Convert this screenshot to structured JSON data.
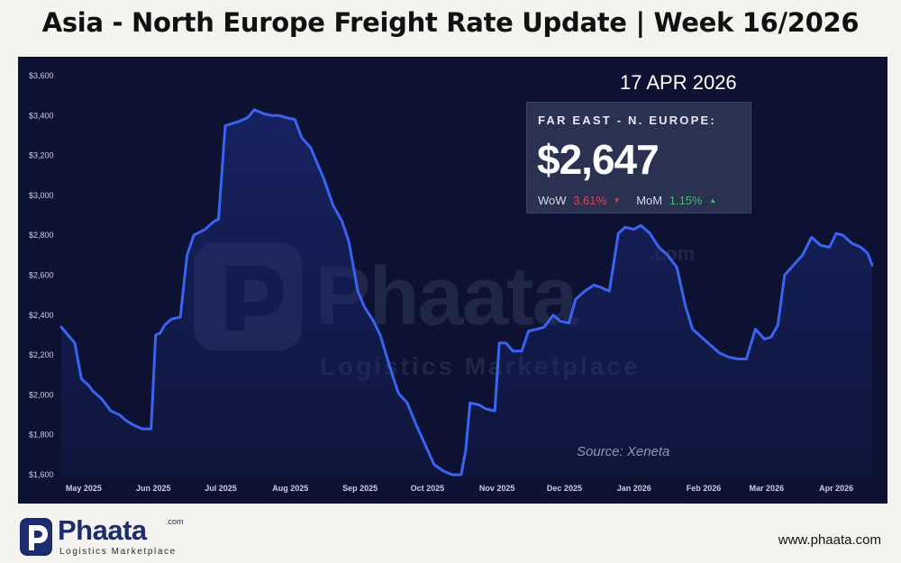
{
  "page": {
    "title": "Asia - North Europe Freight Rate Update | Week 16/2026",
    "website": "www.phaata.com"
  },
  "branding": {
    "logo_name": "Phaata",
    "logo_com": ".com",
    "logo_tagline": "Logistics Marketplace",
    "logo_color": "#1d2c6e"
  },
  "watermark": {
    "name": "Phaata",
    "com": ".com",
    "tagline": "Logistics Marketplace"
  },
  "card": {
    "date": "17 APR 2026",
    "heading": "FAR EAST - N. EUROPE:",
    "value": "$2,647",
    "wow_label": "WoW",
    "wow_value": "3.61%",
    "wow_direction": "down",
    "mom_label": "MoM",
    "mom_value": "1.15%",
    "mom_direction": "up",
    "down_color": "#e0444e",
    "up_color": "#3fbf6a"
  },
  "source": "Source: Xeneta",
  "colors": {
    "background": "#f4f3ef",
    "panel": "#0d1233",
    "line": "#3a63f0",
    "area_fill": "#1a2870"
  },
  "chart_data": {
    "type": "area",
    "ylim": [
      1600,
      3600
    ],
    "yticks": [
      "$1,600",
      "$1,800",
      "$2,000",
      "$2,200",
      "$2,400",
      "$2,600",
      "$2,800",
      "$3,000",
      "$3,200",
      "$3,400",
      "$3,600"
    ],
    "ytick_values": [
      1600,
      1800,
      2000,
      2200,
      2400,
      2600,
      2800,
      3000,
      3200,
      3400,
      3600
    ],
    "xticks": [
      "May 2025",
      "Jun 2025",
      "Jul 2025",
      "Aug 2025",
      "Sep 2025",
      "Oct 2025",
      "Nov 2025",
      "Dec 2025",
      "Jan 2026",
      "Feb 2026",
      "Mar 2026",
      "Apr 2026"
    ],
    "xtick_dates": [
      "2025-05-01",
      "2025-06-01",
      "2025-07-01",
      "2025-08-01",
      "2025-09-01",
      "2025-10-01",
      "2025-11-01",
      "2025-12-01",
      "2026-01-01",
      "2026-02-01",
      "2026-03-01",
      "2026-04-01"
    ],
    "x_range": [
      "2025-04-21",
      "2026-04-17"
    ],
    "grid": false,
    "series": [
      {
        "x": [
          "2025-04-21",
          "2025-04-24",
          "2025-04-27",
          "2025-04-30",
          "2025-05-03",
          "2025-05-05",
          "2025-05-09",
          "2025-05-13",
          "2025-05-17",
          "2025-05-20",
          "2025-05-23",
          "2025-05-27",
          "2025-05-31",
          "2025-06-02",
          "2025-06-04",
          "2025-06-06",
          "2025-06-09",
          "2025-06-13",
          "2025-06-16",
          "2025-06-19",
          "2025-06-24",
          "2025-06-28",
          "2025-06-30",
          "2025-07-03",
          "2025-07-06",
          "2025-07-09",
          "2025-07-13",
          "2025-07-16",
          "2025-07-20",
          "2025-07-24",
          "2025-07-27",
          "2025-07-30",
          "2025-08-03",
          "2025-08-06",
          "2025-08-10",
          "2025-08-13",
          "2025-08-16",
          "2025-08-20",
          "2025-08-24",
          "2025-08-27",
          "2025-08-31",
          "2025-09-03",
          "2025-09-07",
          "2025-09-10",
          "2025-09-14",
          "2025-09-18",
          "2025-09-22",
          "2025-09-26",
          "2025-09-30",
          "2025-10-04",
          "2025-10-08",
          "2025-10-12",
          "2025-10-16",
          "2025-10-18",
          "2025-10-20",
          "2025-10-24",
          "2025-10-27",
          "2025-10-31",
          "2025-11-02",
          "2025-11-05",
          "2025-11-08",
          "2025-11-12",
          "2025-11-15",
          "2025-11-19",
          "2025-11-22",
          "2025-11-26",
          "2025-11-29",
          "2025-12-03",
          "2025-12-06",
          "2025-12-10",
          "2025-12-14",
          "2025-12-17",
          "2025-12-21",
          "2025-12-25",
          "2025-12-28",
          "2026-01-01",
          "2026-01-04",
          "2026-01-08",
          "2026-01-12",
          "2026-01-16",
          "2026-01-20",
          "2026-01-24",
          "2026-01-27",
          "2026-01-31",
          "2026-02-04",
          "2026-02-08",
          "2026-02-12",
          "2026-02-16",
          "2026-02-20",
          "2026-02-24",
          "2026-02-28",
          "2026-03-03",
          "2026-03-06",
          "2026-03-09",
          "2026-03-13",
          "2026-03-17",
          "2026-03-21",
          "2026-03-25",
          "2026-03-29",
          "2026-04-01",
          "2026-04-04",
          "2026-04-08",
          "2026-04-12",
          "2026-04-15",
          "2026-04-17"
        ],
        "values": [
          2340,
          2300,
          2260,
          2080,
          2050,
          2020,
          1980,
          1920,
          1900,
          1870,
          1850,
          1830,
          1830,
          2300,
          2310,
          2350,
          2380,
          2390,
          2700,
          2800,
          2830,
          2870,
          2880,
          3350,
          3360,
          3370,
          3390,
          3430,
          3410,
          3400,
          3400,
          3390,
          3380,
          3290,
          3240,
          3160,
          3080,
          2950,
          2870,
          2770,
          2520,
          2440,
          2370,
          2300,
          2150,
          2010,
          1960,
          1850,
          1750,
          1650,
          1620,
          1600,
          1600,
          1720,
          1960,
          1950,
          1930,
          1920,
          2260,
          2260,
          2220,
          2220,
          2320,
          2330,
          2340,
          2400,
          2370,
          2360,
          2480,
          2520,
          2550,
          2540,
          2520,
          2810,
          2840,
          2830,
          2850,
          2810,
          2740,
          2700,
          2640,
          2440,
          2330,
          2290,
          2250,
          2210,
          2190,
          2180,
          2180,
          2330,
          2280,
          2290,
          2350,
          2600,
          2650,
          2700,
          2790,
          2750,
          2740,
          2810,
          2800,
          2760,
          2740,
          2710,
          2650
        ]
      }
    ],
    "current_value": 2647
  }
}
